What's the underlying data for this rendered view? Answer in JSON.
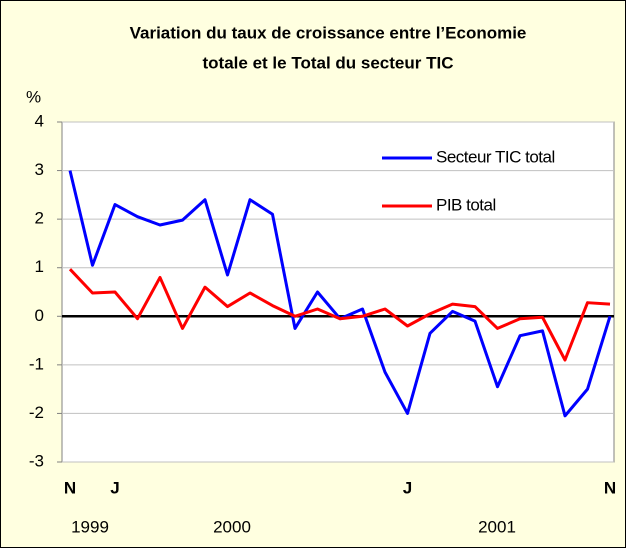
{
  "chart_data": {
    "type": "line",
    "title": [
      "Variation du taux de croissance entre l’Economie",
      "totale et le Total du secteur TIC"
    ],
    "y_label": "%",
    "categories": [
      "N",
      null,
      "J",
      null,
      null,
      null,
      null,
      null,
      null,
      null,
      null,
      null,
      null,
      null,
      null,
      "J",
      null,
      null,
      null,
      null,
      null,
      null,
      null,
      null,
      "N"
    ],
    "year_labels": [
      "1999",
      "2000",
      "2001"
    ],
    "series": [
      {
        "name": "Secteur TIC total",
        "color": "#0000ff",
        "values": [
          3.0,
          1.05,
          2.3,
          2.05,
          1.88,
          1.98,
          2.4,
          0.85,
          2.4,
          2.1,
          -0.25,
          0.5,
          -0.05,
          0.15,
          -1.15,
          -2.0,
          -0.35,
          0.1,
          -0.1,
          -1.45,
          -0.4,
          -0.3,
          -2.05,
          -1.5,
          0.0
        ]
      },
      {
        "name": "PIB total",
        "color": "#ff0000",
        "values": [
          0.97,
          0.48,
          0.5,
          -0.05,
          0.8,
          -0.25,
          0.6,
          0.2,
          0.48,
          0.22,
          0.0,
          0.15,
          -0.05,
          0.0,
          0.15,
          -0.2,
          0.05,
          0.25,
          0.2,
          -0.25,
          -0.05,
          -0.02,
          -0.9,
          0.28,
          0.25
        ]
      }
    ],
    "ylim": [
      -3,
      4
    ],
    "yticks": [
      -3,
      -2,
      -1,
      0,
      1,
      2,
      3,
      4
    ],
    "grid": true
  }
}
